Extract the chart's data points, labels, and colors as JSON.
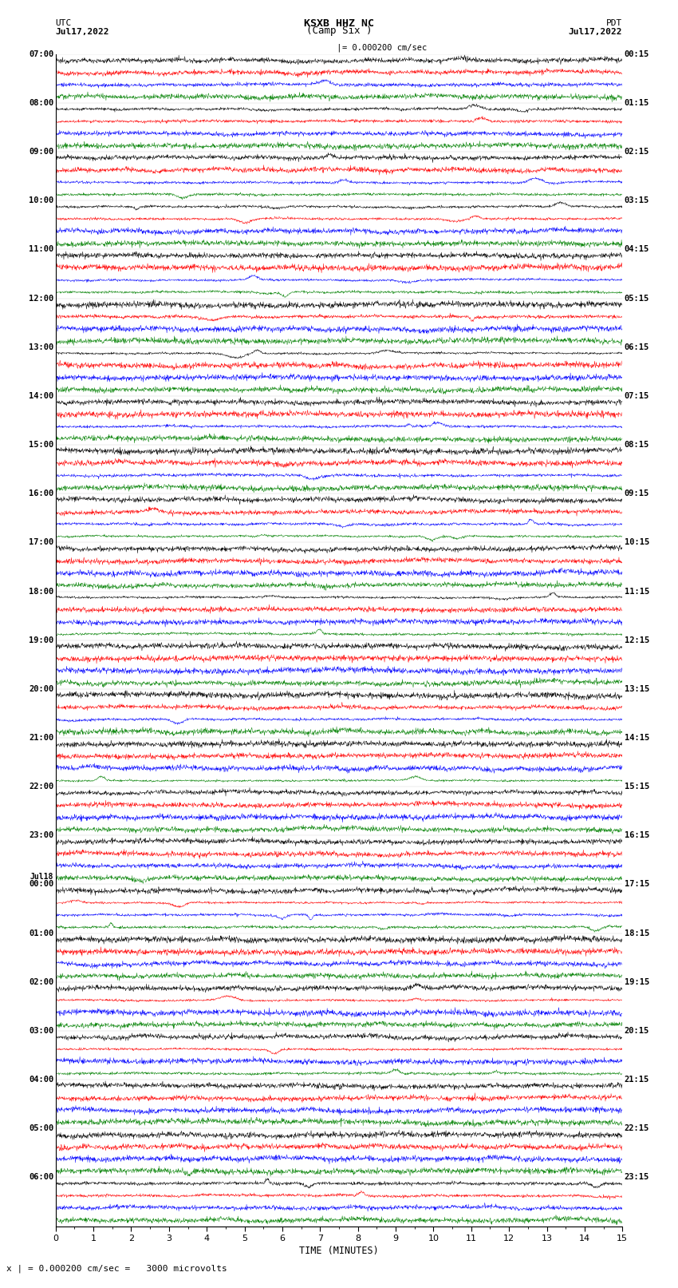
{
  "title_center": "KSXB HHZ NC",
  "title_sub": "(Camp Six )",
  "label_left_top": "UTC",
  "label_left_date": "Jul17,2022",
  "label_right_top": "PDT",
  "label_right_date": "Jul17,2022",
  "scale_label": "= 0.000200 cm/sec",
  "bottom_scale": "x | = 0.000200 cm/sec =   3000 microvolts",
  "xlabel": "TIME (MINUTES)",
  "time_minutes": 15,
  "colors": [
    "black",
    "red",
    "blue",
    "green"
  ],
  "bg_color": "white",
  "left_times": [
    "07:00",
    "08:00",
    "09:00",
    "10:00",
    "11:00",
    "12:00",
    "13:00",
    "14:00",
    "15:00",
    "16:00",
    "17:00",
    "18:00",
    "19:00",
    "20:00",
    "21:00",
    "22:00",
    "23:00",
    "Jul18\n00:00",
    "01:00",
    "02:00",
    "03:00",
    "04:00",
    "05:00",
    "06:00"
  ],
  "right_times": [
    "00:15",
    "01:15",
    "02:15",
    "03:15",
    "04:15",
    "05:15",
    "06:15",
    "07:15",
    "08:15",
    "09:15",
    "10:15",
    "11:15",
    "12:15",
    "13:15",
    "14:15",
    "15:15",
    "16:15",
    "17:15",
    "18:15",
    "19:15",
    "20:15",
    "21:15",
    "22:15",
    "23:15"
  ],
  "num_groups": 24,
  "traces_per_group": 4,
  "noise_scale": 0.06,
  "spike_prob": 0.35,
  "figsize": [
    8.5,
    16.13
  ],
  "dpi": 100
}
